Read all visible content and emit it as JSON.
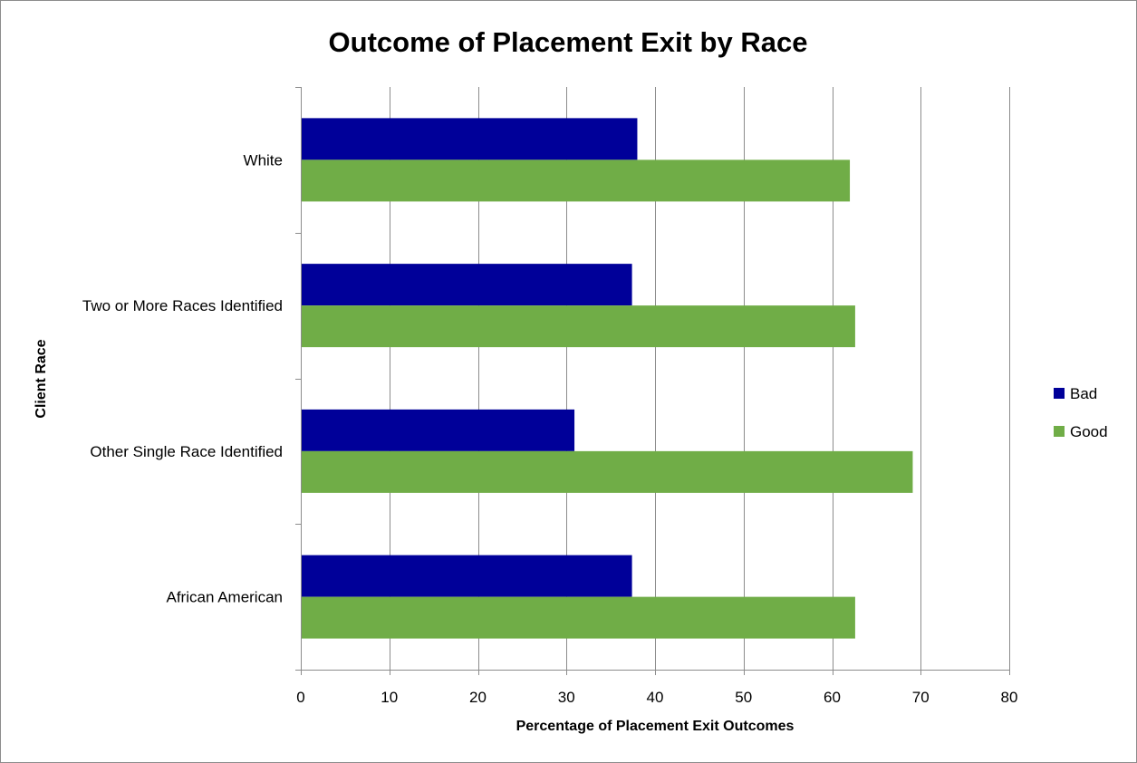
{
  "chart_data": {
    "type": "bar",
    "orientation": "horizontal",
    "title": "Outcome of Placement Exit by Race",
    "xlabel": "Percentage of Placement Exit Outcomes",
    "ylabel": "Client Race",
    "xlim": [
      0,
      80
    ],
    "x_ticks": [
      "0",
      "10",
      "20",
      "30",
      "40",
      "50",
      "60",
      "70",
      "80"
    ],
    "x_tick_values": [
      0,
      10,
      20,
      30,
      40,
      50,
      60,
      70,
      80
    ],
    "grid": "vertical",
    "legend_position": "right",
    "categories": [
      "White",
      "Two or More Races Identified",
      "Other Single Race Identified",
      "African American"
    ],
    "series": [
      {
        "name": "Bad",
        "color": "#000099",
        "values": [
          38.0,
          37.4,
          30.9,
          37.4
        ]
      },
      {
        "name": "Good",
        "color": "#70AD47",
        "values": [
          62.0,
          62.6,
          69.1,
          62.6
        ]
      }
    ]
  }
}
